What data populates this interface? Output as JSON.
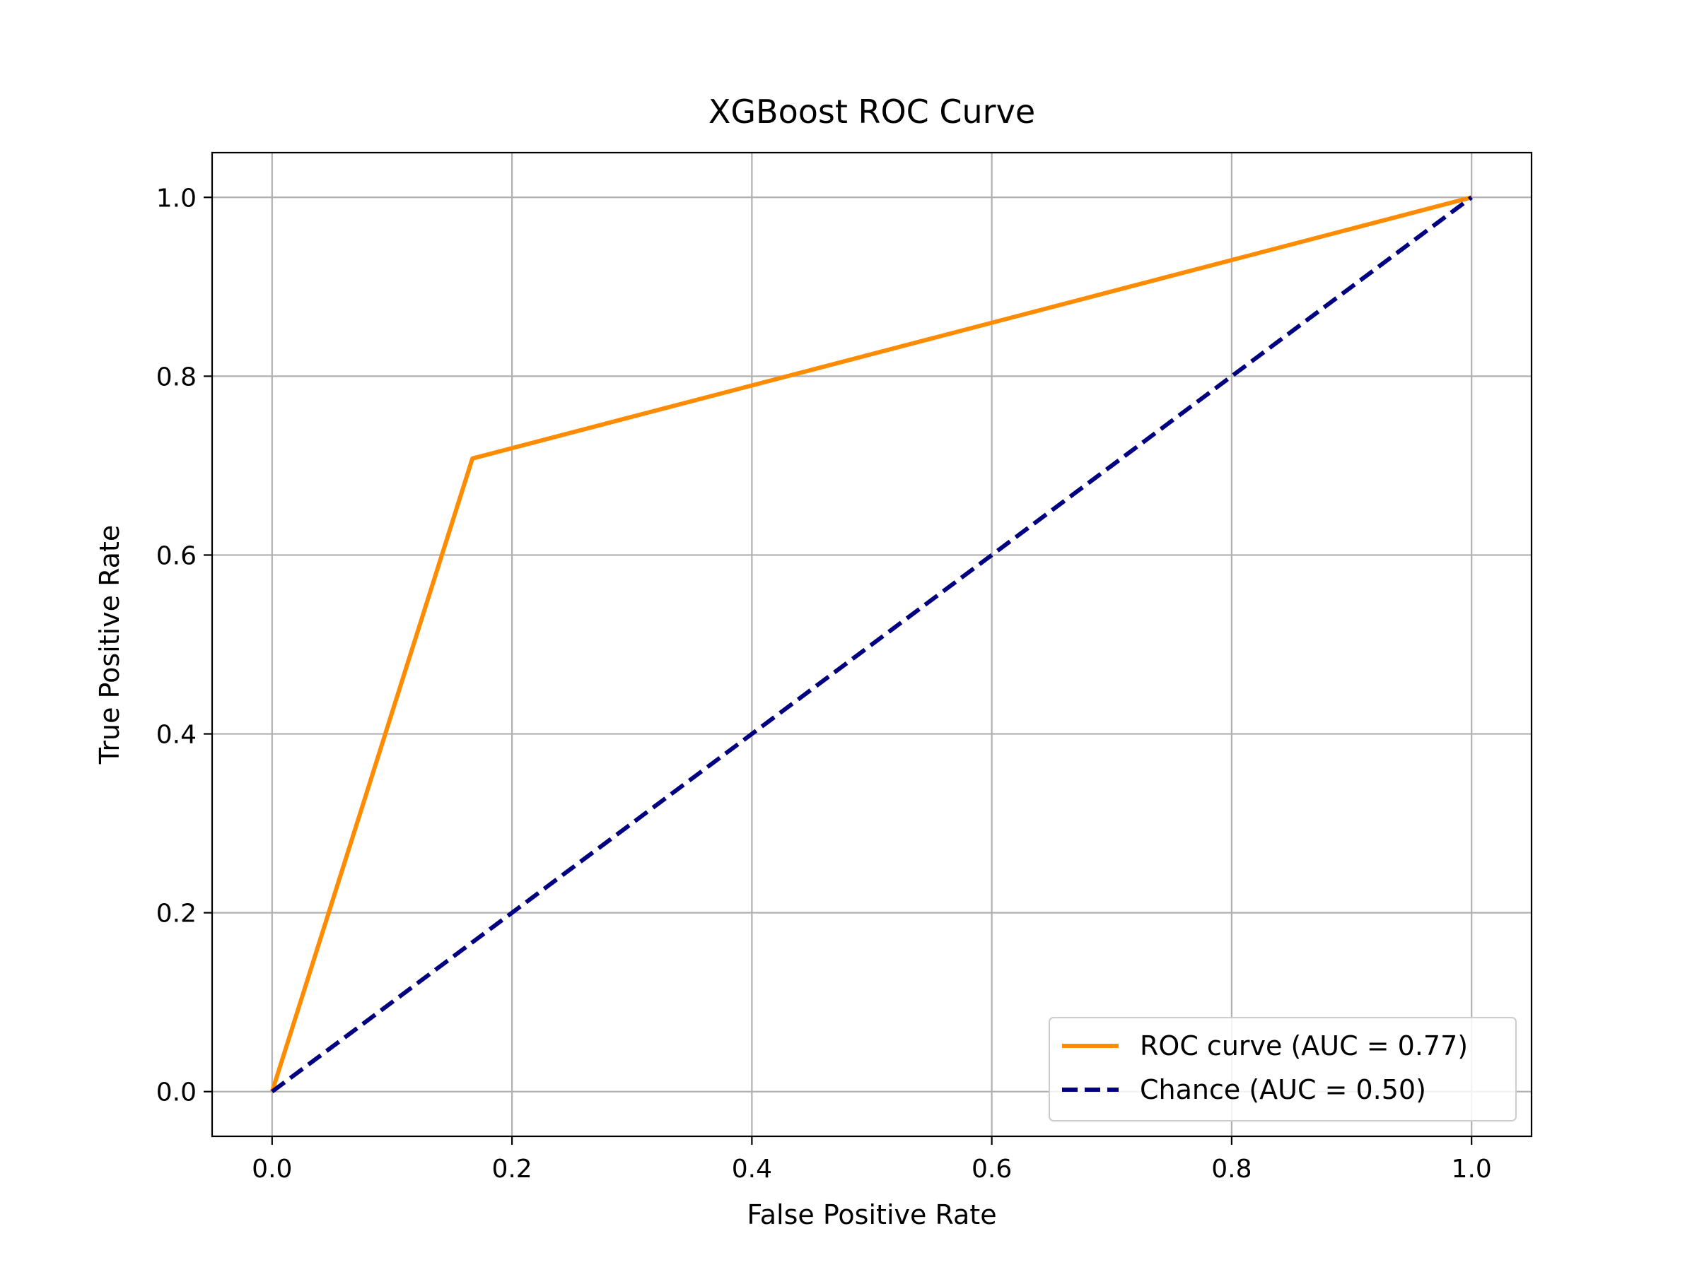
{
  "chart_data": {
    "type": "line",
    "title": "XGBoost ROC Curve",
    "xlabel": "False Positive Rate",
    "ylabel": "True Positive Rate",
    "xlim": [
      -0.05,
      1.05
    ],
    "ylim": [
      -0.05,
      1.05
    ],
    "xticks": [
      "0.0",
      "0.2",
      "0.4",
      "0.6",
      "0.8",
      "1.0"
    ],
    "yticks": [
      "0.0",
      "0.2",
      "0.4",
      "0.6",
      "0.8",
      "1.0"
    ],
    "grid": true,
    "legend_position": "lower right",
    "series": [
      {
        "name": "ROC curve (AUC = 0.77)",
        "color": "#ff8c00",
        "style": "solid",
        "x": [
          0.0,
          0.167,
          1.0
        ],
        "y": [
          0.0,
          0.708,
          1.0
        ]
      },
      {
        "name": "Chance (AUC = 0.50)",
        "color": "#000080",
        "style": "dashed",
        "x": [
          0.0,
          1.0
        ],
        "y": [
          0.0,
          1.0
        ]
      }
    ]
  }
}
